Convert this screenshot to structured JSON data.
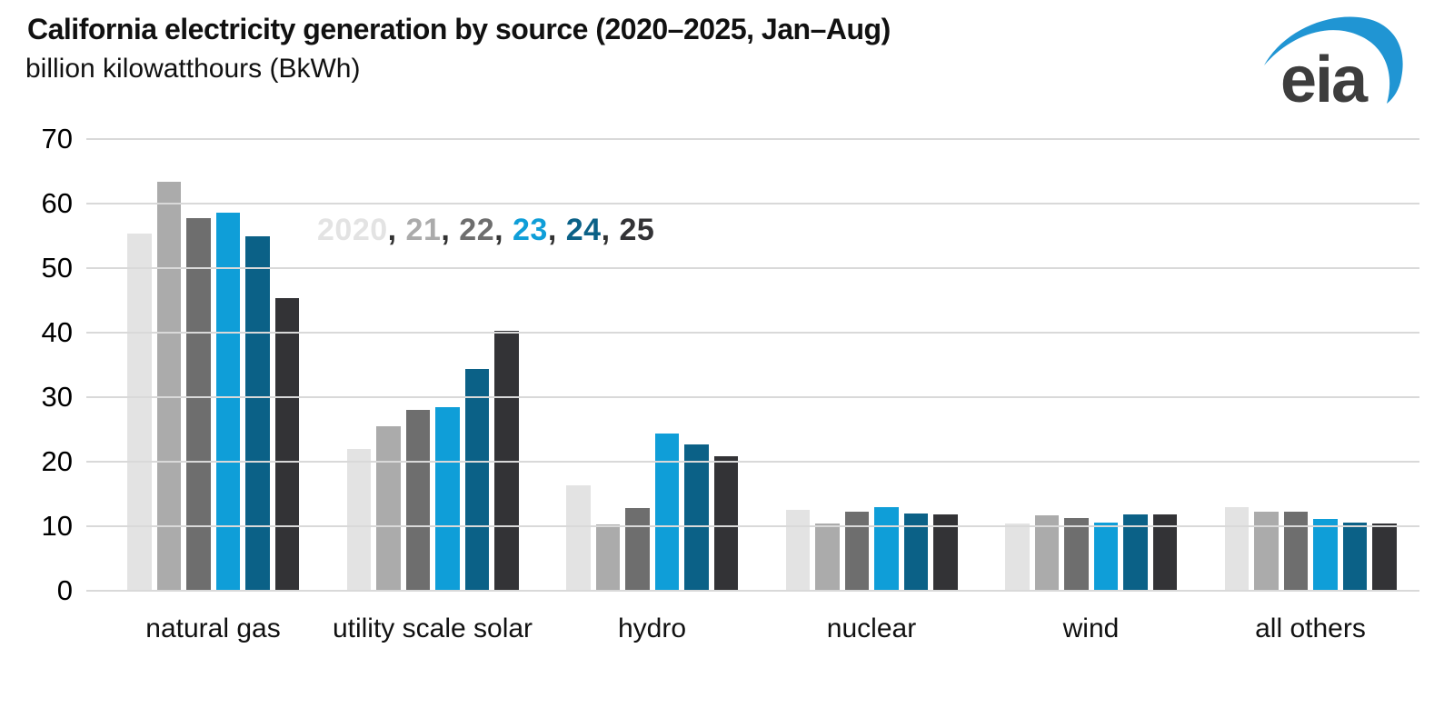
{
  "header": {
    "title": "California electricity generation by source (2020–2025, Jan–Aug)",
    "subtitle": "billion kilowatthours (BkWh)",
    "logo_text": "eia"
  },
  "colors": {
    "grid": "#d9d9d9",
    "axis_text": "#000000",
    "title_text": "#111111",
    "legend_separator": "#333333",
    "logo_swoosh": "#2095d3",
    "logo_text": "#3d3d3d",
    "background": "#ffffff"
  },
  "chart_data": {
    "type": "bar",
    "title": "California electricity generation by source (2020–2025, Jan–Aug)",
    "ylabel": "billion kilowatthours (BkWh)",
    "ylim": [
      0,
      70
    ],
    "yticks": [
      0,
      10,
      20,
      30,
      40,
      50,
      60,
      70
    ],
    "grid": true,
    "grid_on_top": true,
    "legend_position": "inside-top-left",
    "legend_separator": ", ",
    "categories": [
      "natural gas",
      "utility scale solar",
      "hydro",
      "nuclear",
      "wind",
      "all others"
    ],
    "series": [
      {
        "name": "2020",
        "color": "#e3e3e3",
        "values": [
          55.4,
          22.0,
          16.3,
          12.6,
          10.4,
          13.0
        ]
      },
      {
        "name": "21",
        "color": "#ababab",
        "values": [
          63.4,
          25.5,
          10.3,
          10.4,
          11.7,
          12.3
        ]
      },
      {
        "name": "22",
        "color": "#6e6e6e",
        "values": [
          57.8,
          28.0,
          12.8,
          12.2,
          11.2,
          12.2
        ]
      },
      {
        "name": "23",
        "color": "#0f9ed8",
        "values": [
          58.6,
          28.5,
          24.3,
          12.9,
          10.6,
          11.1
        ]
      },
      {
        "name": "24",
        "color": "#0b6187",
        "values": [
          55.0,
          34.4,
          22.7,
          12.0,
          11.9,
          10.6
        ]
      },
      {
        "name": "25",
        "color": "#333336",
        "values": [
          45.4,
          40.3,
          20.9,
          11.8,
          11.8,
          10.4
        ]
      }
    ]
  }
}
